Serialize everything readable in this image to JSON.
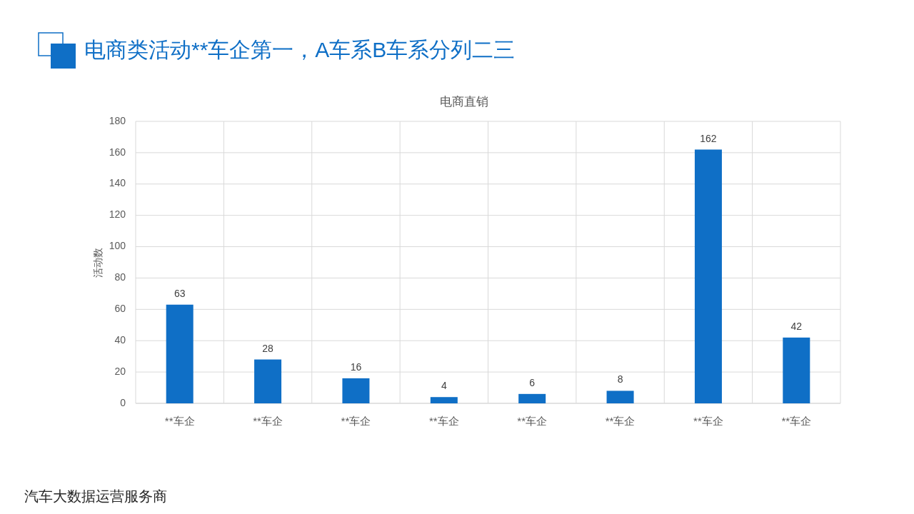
{
  "chart_data": {
    "type": "bar",
    "title": "电商类活动**车企第一，A车系B车系分列二三",
    "subtitle": "电商直销",
    "ylabel": "活动数",
    "categories": [
      "**车企",
      "**车企",
      "**车企",
      "**车企",
      "**车企",
      "**车企",
      "**车企",
      "**车企"
    ],
    "values": [
      63,
      28,
      16,
      4,
      6,
      8,
      162,
      42
    ],
    "color": "#0f6fc6",
    "ylim": [
      0,
      180
    ],
    "yticks": [
      0,
      20,
      40,
      60,
      80,
      100,
      120,
      140,
      160,
      180
    ],
    "grid": true,
    "data_labels": true,
    "annotations": [
      "汽车大数据运营服务商"
    ]
  }
}
